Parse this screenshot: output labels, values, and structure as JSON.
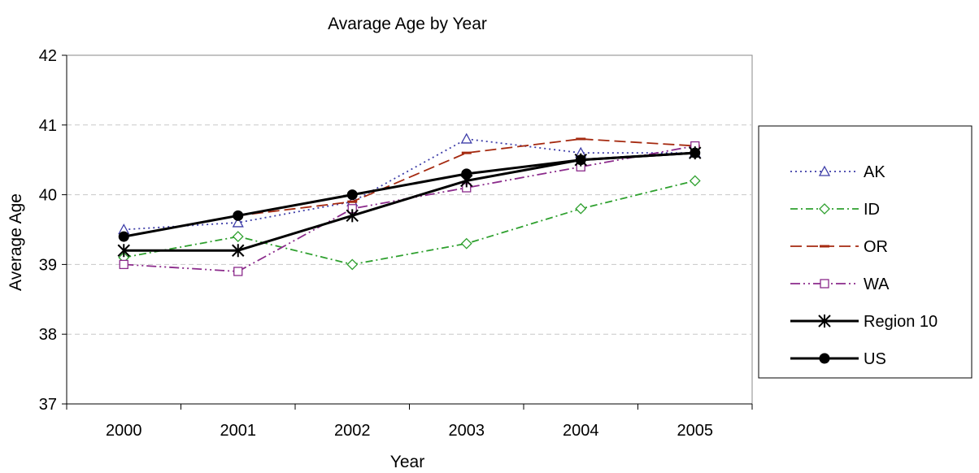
{
  "chart_data": {
    "type": "line",
    "title": "Avarage Age by Year",
    "xlabel": "Year",
    "ylabel": "Average Age",
    "categories": [
      "2000",
      "2001",
      "2002",
      "2003",
      "2004",
      "2005"
    ],
    "ylim": [
      37,
      42
    ],
    "yticks": [
      37,
      38,
      39,
      40,
      41,
      42
    ],
    "grid": true,
    "legend_position": "right",
    "series": [
      {
        "name": "AK",
        "values": [
          39.5,
          39.6,
          39.9,
          40.8,
          40.6,
          40.6
        ],
        "color": "#3d3da8",
        "dash": "dotted",
        "marker": "triangle"
      },
      {
        "name": "ID",
        "values": [
          39.1,
          39.4,
          39.0,
          39.3,
          39.8,
          40.2
        ],
        "color": "#2ea02e",
        "dash": "dashdot",
        "marker": "diamond"
      },
      {
        "name": "OR",
        "values": [
          39.4,
          39.7,
          39.9,
          40.6,
          40.8,
          40.7
        ],
        "color": "#a52a10",
        "dash": "longdash",
        "marker": "dash"
      },
      {
        "name": "WA",
        "values": [
          39.0,
          38.9,
          39.8,
          40.1,
          40.4,
          40.7
        ],
        "color": "#8b2a8b",
        "dash": "dashdotdot",
        "marker": "square"
      },
      {
        "name": "Region 10",
        "values": [
          39.2,
          39.2,
          39.7,
          40.2,
          40.5,
          40.6
        ],
        "color": "#000000",
        "dash": "solid",
        "marker": "asterisk"
      },
      {
        "name": "US",
        "values": [
          39.4,
          39.7,
          40.0,
          40.3,
          40.5,
          40.6
        ],
        "color": "#000000",
        "dash": "solid",
        "marker": "circle"
      }
    ]
  }
}
